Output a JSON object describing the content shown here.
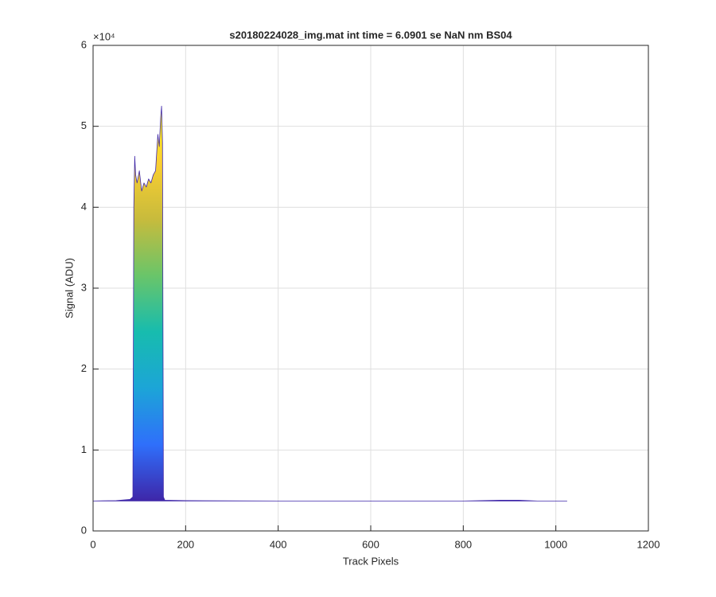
{
  "chart_data": {
    "type": "area",
    "title": "s20180224028_img.mat int time = 6.0901 se  NaN nm BS04",
    "x_label": "Track Pixels",
    "y_label": "Signal (ADU)",
    "y_exponent_label": "×10⁴",
    "x": [
      0,
      50,
      80,
      86,
      88,
      90,
      92,
      95,
      100,
      105,
      110,
      115,
      120,
      125,
      130,
      135,
      140,
      143,
      146,
      148,
      150,
      152,
      155,
      200,
      400,
      600,
      800,
      880,
      920,
      960,
      1024
    ],
    "values": [
      3700,
      3750,
      3900,
      4200,
      40000,
      46300,
      44000,
      43000,
      44500,
      42000,
      43000,
      42500,
      43500,
      43000,
      44000,
      44500,
      49000,
      47500,
      51000,
      52500,
      48000,
      4200,
      3800,
      3750,
      3700,
      3700,
      3700,
      3800,
      3800,
      3700,
      3700
    ],
    "colormap": [
      "#3e26a8",
      "#2f6ffb",
      "#1ca5d7",
      "#17bcae",
      "#6ac569",
      "#c8bb3c",
      "#fbcf31",
      "#f9fb15"
    ],
    "xlim": [
      0,
      1200
    ],
    "xticks": [
      0,
      200,
      400,
      600,
      800,
      1000,
      1200
    ],
    "ylim": [
      0,
      60000
    ],
    "yticks": [
      {
        "value": 0,
        "label": "0"
      },
      {
        "value": 10000,
        "label": "1"
      },
      {
        "value": 20000,
        "label": "2"
      },
      {
        "value": 30000,
        "label": "3"
      },
      {
        "value": 40000,
        "label": "4"
      },
      {
        "value": 50000,
        "label": "5"
      },
      {
        "value": 60000,
        "label": "6"
      }
    ],
    "grid": true
  }
}
